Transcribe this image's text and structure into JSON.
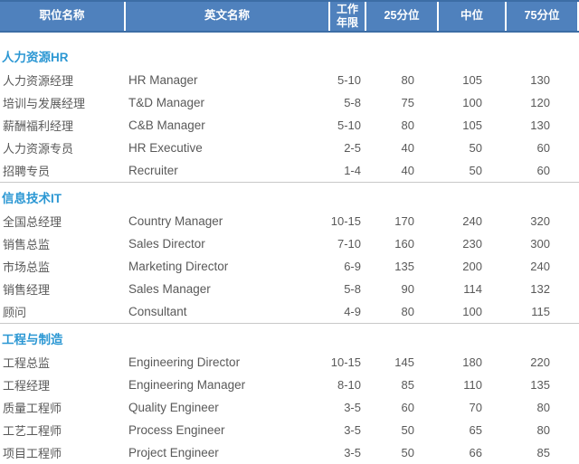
{
  "colors": {
    "header_bg": "#4f81bd",
    "header_edge": "#3c6da5",
    "header_text": "#ffffff",
    "section_title": "#2b97d3",
    "body_text": "#595959",
    "divider": "#c8c8c8",
    "bottom_bar": "#e2e2e2"
  },
  "table": {
    "header": {
      "columns": [
        {
          "label": "职位名称"
        },
        {
          "label": "英文名称"
        },
        {
          "label": "工作年限"
        },
        {
          "label": "25分位"
        },
        {
          "label": "中位"
        },
        {
          "label": "75分位"
        }
      ]
    },
    "sections": [
      {
        "title": "人力资源HR",
        "rows": [
          {
            "position_cn": "人力资源经理",
            "position_en": "HR Manager",
            "years": "5-10",
            "p25": "80",
            "median": "105",
            "p75": "130"
          },
          {
            "position_cn": "培训与发展经理",
            "position_en": "T&D Manager",
            "years": "5-8",
            "p25": "75",
            "median": "100",
            "p75": "120"
          },
          {
            "position_cn": "薪酬福利经理",
            "position_en": "C&B Manager",
            "years": "5-10",
            "p25": "80",
            "median": "105",
            "p75": "130"
          },
          {
            "position_cn": "人力资源专员",
            "position_en": "HR Executive",
            "years": "2-5",
            "p25": "40",
            "median": "50",
            "p75": "60"
          },
          {
            "position_cn": "招聘专员",
            "position_en": "Recruiter",
            "years": "1-4",
            "p25": "40",
            "median": "50",
            "p75": "60"
          }
        ]
      },
      {
        "title": "信息技术IT",
        "rows": [
          {
            "position_cn": "全国总经理",
            "position_en": "Country Manager",
            "years": "10-15",
            "p25": "170",
            "median": "240",
            "p75": "320"
          },
          {
            "position_cn": "销售总监",
            "position_en": "Sales Director",
            "years": "7-10",
            "p25": "160",
            "median": "230",
            "p75": "300"
          },
          {
            "position_cn": "市场总监",
            "position_en": "Marketing Director",
            "years": "6-9",
            "p25": "135",
            "median": "200",
            "p75": "240"
          },
          {
            "position_cn": "销售经理",
            "position_en": "Sales Manager",
            "years": "5-8",
            "p25": "90",
            "median": "114",
            "p75": "132"
          },
          {
            "position_cn": "顾问",
            "position_en": "Consultant",
            "years": "4-9",
            "p25": "80",
            "median": "100",
            "p75": "115"
          }
        ]
      },
      {
        "title": "工程与制造",
        "rows": [
          {
            "position_cn": "工程总监",
            "position_en": "Engineering Director",
            "years": "10-15",
            "p25": "145",
            "median": "180",
            "p75": "220"
          },
          {
            "position_cn": "工程经理",
            "position_en": "Engineering Manager",
            "years": "8-10",
            "p25": "85",
            "median": "110",
            "p75": "135"
          },
          {
            "position_cn": "质量工程师",
            "position_en": "Quality Engineer",
            "years": "3-5",
            "p25": "60",
            "median": "70",
            "p75": "80"
          },
          {
            "position_cn": "工艺工程师",
            "position_en": "Process Engineer",
            "years": "3-5",
            "p25": "50",
            "median": "65",
            "p75": "80"
          },
          {
            "position_cn": "项目工程师",
            "position_en": "Project Engineer",
            "years": "3-5",
            "p25": "50",
            "median": "66",
            "p75": "85"
          }
        ]
      }
    ]
  }
}
